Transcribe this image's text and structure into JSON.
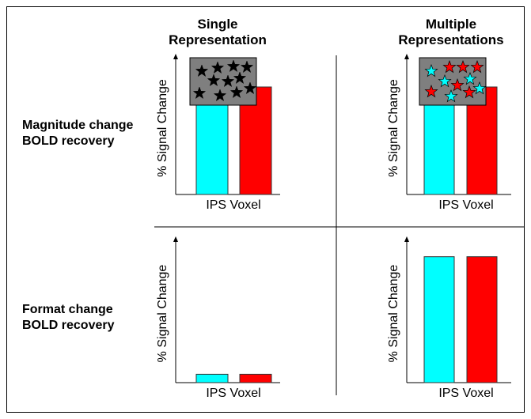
{
  "columns": [
    {
      "line1": "Single",
      "line2": "Representation"
    },
    {
      "line1": "Multiple",
      "line2": "Representations"
    }
  ],
  "rows": [
    {
      "line1": "Magnitude change",
      "line2": "BOLD recovery"
    },
    {
      "line1": "Format change",
      "line2": "BOLD recovery"
    }
  ],
  "colors": {
    "cyan": "#00ffff",
    "red": "#ff0000",
    "panel": "#7f7f7f",
    "black": "#000000"
  },
  "chart_data": [
    {
      "type": "bar",
      "panel": "top-left",
      "ylabel": "% Signal Change",
      "xlabel": "IPS Voxel",
      "values": [
        0.8,
        0.8
      ],
      "ylim": [
        0,
        1
      ],
      "bar_colors": [
        "cyan",
        "red"
      ],
      "inset": "single"
    },
    {
      "type": "bar",
      "panel": "top-right",
      "ylabel": "% Signal Change",
      "xlabel": "IPS Voxel",
      "values": [
        0.8,
        0.8
      ],
      "ylim": [
        0,
        1
      ],
      "bar_colors": [
        "cyan",
        "red"
      ],
      "inset": "multiple"
    },
    {
      "type": "bar",
      "panel": "bottom-left",
      "ylabel": "% Signal Change",
      "xlabel": "IPS Voxel",
      "values": [
        0.06,
        0.06
      ],
      "ylim": [
        0,
        1
      ],
      "bar_colors": [
        "cyan",
        "red"
      ],
      "inset": "none"
    },
    {
      "type": "bar",
      "panel": "bottom-right",
      "ylabel": "% Signal Change",
      "xlabel": "IPS Voxel",
      "values": [
        0.9,
        0.9
      ],
      "ylim": [
        0,
        1
      ],
      "bar_colors": [
        "cyan",
        "red"
      ],
      "inset": "none"
    }
  ]
}
